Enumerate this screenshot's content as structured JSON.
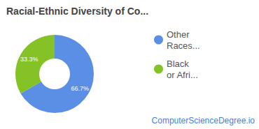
{
  "chart_data": {
    "type": "pie",
    "title": "Racial-Ethnic Diversity of Co...",
    "categories": [
      "Other Races...",
      "Black or Afri..."
    ],
    "values": [
      66.7,
      33.3
    ],
    "value_labels": [
      "66.7%",
      "33.3%"
    ],
    "colors": [
      "#5b8fe6",
      "#84c225"
    ],
    "data_labels": true,
    "legend": "right",
    "annotations": [
      "ComputerScienceDegree.io"
    ]
  }
}
